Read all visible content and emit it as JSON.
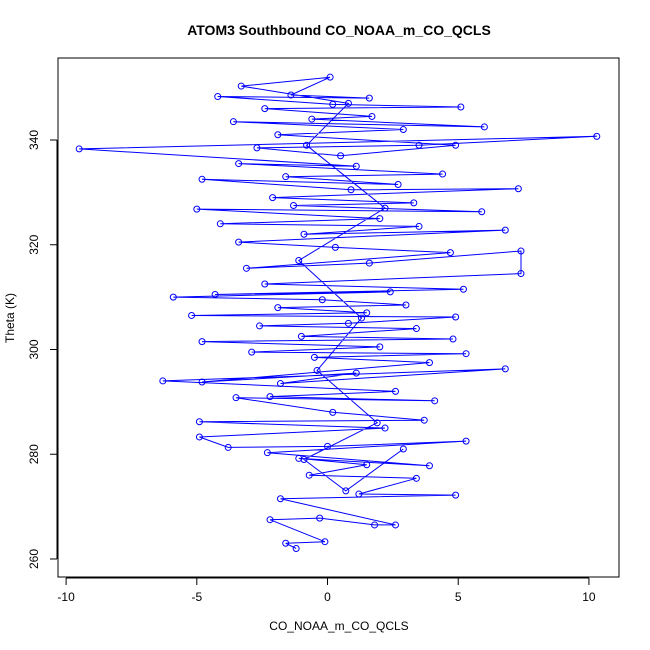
{
  "chart_data": {
    "type": "line",
    "title": "ATOM3 Southbound CO_NOAA_m_CO_QCLS",
    "x_label": "CO_NOAA_m_CO_QCLS",
    "y_label": "Theta (K)",
    "x": [
      -1.2,
      -1.6,
      -0.1,
      -2.2,
      -0.3,
      1.8,
      2.6,
      -1.8,
      4.9,
      1.2,
      3.4,
      -0.7,
      1.5,
      -1.1,
      3.9,
      -2.3,
      5.3,
      0,
      -3.8,
      -4.9,
      2.2,
      -4.9,
      3.7,
      0.2,
      -3.5,
      4.1,
      -2.2,
      2.6,
      -6.3,
      6.8,
      -1.8,
      1.1,
      -4.8,
      3.9,
      -0.5,
      5.3,
      -2.9,
      2,
      -4.8,
      4.8,
      -1,
      3.4,
      -2.6,
      0.8,
      4.9,
      -5.2,
      1.5,
      -1.9,
      3,
      -0.2,
      -5.9,
      2.4,
      -4.3,
      5.2,
      -2.4,
      7.4,
      7.4,
      1.6,
      -3.1,
      4.7,
      0.3,
      -3.4,
      6.8,
      -0.9,
      3.5,
      -4.1,
      2,
      -5,
      5.9,
      -1.3,
      3.3,
      -2.1,
      7.3,
      0.9,
      -4.8,
      2.7,
      -1.6,
      4.4,
      -3.4,
      1.1,
      -9.5,
      10.3,
      3.5,
      -2.7,
      0.5,
      4.9,
      -1.9,
      2.9,
      -3.6,
      6,
      -0.6,
      1.7,
      -2.4,
      5.1,
      0.2,
      -4.2,
      1.6,
      -1.4,
      0.1,
      -3.3,
      0.8,
      -0.8,
      2.2,
      -1.1,
      1.3,
      -0.4,
      1.9,
      -0.9,
      0.7,
      2.9
    ],
    "series": [
      {
        "color": "#0000ff",
        "values": [
          262,
          263,
          263.3,
          267.5,
          267.8,
          266.5,
          266.5,
          271.5,
          272.2,
          272.4,
          275.4,
          276,
          278,
          279.2,
          277.8,
          280.3,
          282.5,
          281.5,
          281.3,
          283.3,
          285,
          286.2,
          286.5,
          288,
          290.8,
          290.2,
          291,
          292,
          294,
          296.3,
          293.5,
          295.5,
          293.8,
          297.5,
          298.5,
          299.2,
          299.5,
          300.5,
          301.5,
          302,
          302.5,
          304,
          304.5,
          305,
          306.2,
          306.5,
          307,
          308,
          308.5,
          309.5,
          310,
          311,
          310.5,
          311.5,
          312.5,
          314.5,
          318.8,
          316.5,
          315.5,
          318.5,
          319.5,
          320.5,
          322.8,
          322,
          323.5,
          324,
          325,
          326.8,
          326.3,
          327.5,
          328,
          329,
          330.7,
          330.5,
          332.5,
          331.5,
          333,
          333.5,
          335.5,
          335,
          338.3,
          340.7,
          339,
          338.5,
          337,
          339,
          341,
          342,
          343.5,
          342.5,
          344,
          344.5,
          346,
          346.3,
          346.8,
          348.3,
          348,
          348.6,
          352,
          350.3,
          347,
          339,
          327,
          317,
          306,
          296,
          286,
          279,
          273,
          281
        ]
      }
    ],
    "xlim": [
      -10.31,
      11.15
    ],
    "ylim": [
      256.56,
      355.66
    ],
    "xticks": [
      -10,
      -5,
      0,
      5,
      10
    ],
    "yticks": [
      260,
      280,
      300,
      320,
      340
    ]
  }
}
